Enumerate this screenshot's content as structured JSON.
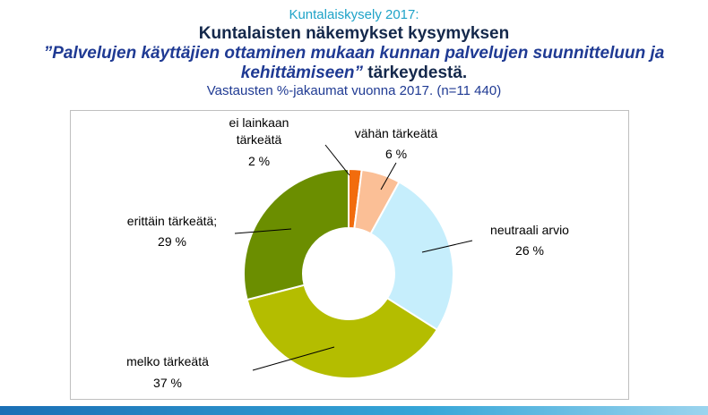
{
  "header": {
    "supertitle": "Kuntalaiskysely 2017:",
    "title_line1": "Kuntalaisten näkemykset kysymyksen",
    "title_line2_quote": "”Palvelujen käyttäjien ottaminen mukaan kunnan palvelujen suunnitteluun ja",
    "title_line3_quote": "kehittämiseen”",
    "title_line3_rest": " tärkeydestä.",
    "subtitle": "Vastausten %-jakaumat vuonna 2017. (n=11 440)"
  },
  "chart_data": {
    "type": "pie",
    "donut": true,
    "categories": [
      "ei lainkaan tärkeätä",
      "vähän tärkeätä",
      "neutraali arvio",
      "melko tärkeätä",
      "erittäin tärkeätä;"
    ],
    "values": [
      2,
      6,
      26,
      37,
      29
    ],
    "value_labels": [
      "2 %",
      "6 %",
      "26 %",
      "37 %",
      "29 %"
    ],
    "colors": [
      "#f26c0d",
      "#fbbf96",
      "#c6eefc",
      "#b4bd00",
      "#6b8e00"
    ],
    "legend": "none"
  }
}
